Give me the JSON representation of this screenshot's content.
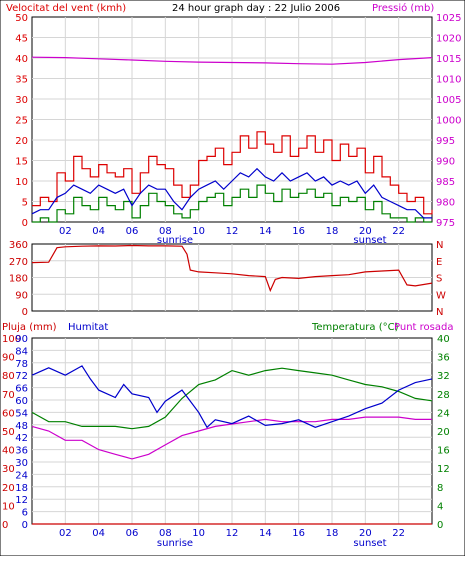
{
  "header": {
    "wind_title": "Velocitat del vent (kmh)",
    "center_title": "24 hour graph day : 22 Julio 2006",
    "pressure_title": "Pressió (mb)",
    "rain_title": "Pluja (mm)",
    "humidity_title": "Humitat",
    "temp_title": "Temperatura (°C)",
    "dew_title": "Punt rosada",
    "sunrise": "sunrise",
    "sunset": "sunset"
  },
  "colors": {
    "wind_gust": "#dd0000",
    "wind_avg": "#0000cc",
    "wind_low": "#008000",
    "pressure": "#cc00cc",
    "direction": "#cc0000",
    "humidity": "#0000cc",
    "temperature": "#008000",
    "dew": "#cc00cc",
    "rain": "#cc0000",
    "grid": "#d6d6d6",
    "frame": "#000000"
  },
  "chart_data": [
    {
      "type": "line",
      "name": "wind-pressure",
      "x_ticks": [
        "02",
        "04",
        "06",
        "08",
        "10",
        "12",
        "14",
        "16",
        "18",
        "20",
        "22"
      ],
      "y_left_ticks": [
        "0",
        "5",
        "10",
        "15",
        "20",
        "25",
        "30",
        "35",
        "40",
        "45",
        "50"
      ],
      "y_right_ticks": [
        "975",
        "980",
        "985",
        "990",
        "995",
        "1000",
        "1005",
        "1010",
        "1015",
        "1020",
        "1025"
      ],
      "ylim_left": [
        0,
        50
      ],
      "ylim_right": [
        975,
        1025
      ],
      "xlim": [
        0,
        24
      ],
      "series": [
        {
          "axis": "left",
          "color_key": "wind_gust",
          "x": [
            0,
            0.5,
            1,
            1.5,
            2,
            2.5,
            3,
            3.5,
            4,
            4.5,
            5,
            5.5,
            6,
            6.5,
            7,
            7.5,
            8,
            8.5,
            9,
            9.5,
            10,
            10.5,
            11,
            11.5,
            12,
            12.5,
            13,
            13.5,
            14,
            14.5,
            15,
            15.5,
            16,
            16.5,
            17,
            17.5,
            18,
            18.5,
            19,
            19.5,
            20,
            20.5,
            21,
            21.5,
            22,
            22.5,
            23,
            23.5,
            24
          ],
          "values": [
            4,
            6,
            5,
            12,
            10,
            16,
            13,
            11,
            14,
            12,
            11,
            13,
            7,
            12,
            16,
            14,
            13,
            9,
            6,
            9,
            15,
            16,
            18,
            14,
            17,
            21,
            18,
            22,
            19,
            17,
            21,
            16,
            18,
            21,
            17,
            20,
            15,
            19,
            16,
            18,
            12,
            16,
            11,
            9,
            7,
            5,
            6,
            2,
            3
          ]
        },
        {
          "axis": "left",
          "color_key": "wind_avg",
          "x": [
            0,
            0.5,
            1,
            1.5,
            2,
            2.5,
            3,
            3.5,
            4,
            4.5,
            5,
            5.5,
            6,
            6.5,
            7,
            7.5,
            8,
            8.5,
            9,
            9.5,
            10,
            10.5,
            11,
            11.5,
            12,
            12.5,
            13,
            13.5,
            14,
            14.5,
            15,
            15.5,
            16,
            16.5,
            17,
            17.5,
            18,
            18.5,
            19,
            19.5,
            20,
            20.5,
            21,
            21.5,
            22,
            22.5,
            23,
            23.5,
            24
          ],
          "values": [
            2,
            3,
            3,
            6,
            7,
            9,
            8,
            7,
            9,
            8,
            7,
            8,
            4,
            7,
            9,
            8,
            8,
            5,
            3,
            6,
            8,
            9,
            10,
            8,
            10,
            12,
            11,
            13,
            11,
            10,
            12,
            10,
            11,
            12,
            10,
            11,
            9,
            10,
            9,
            10,
            7,
            9,
            6,
            5,
            4,
            3,
            3,
            1,
            1
          ]
        },
        {
          "axis": "left",
          "color_key": "wind_low",
          "x": [
            0,
            0.5,
            1,
            1.5,
            2,
            2.5,
            3,
            3.5,
            4,
            4.5,
            5,
            5.5,
            6,
            6.5,
            7,
            7.5,
            8,
            8.5,
            9,
            9.5,
            10,
            10.5,
            11,
            11.5,
            12,
            12.5,
            13,
            13.5,
            14,
            14.5,
            15,
            15.5,
            16,
            16.5,
            17,
            17.5,
            18,
            18.5,
            19,
            19.5,
            20,
            20.5,
            21,
            21.5,
            22,
            22.5,
            23,
            23.5,
            24
          ],
          "values": [
            0,
            1,
            0,
            3,
            2,
            6,
            4,
            3,
            6,
            4,
            3,
            5,
            1,
            4,
            7,
            5,
            4,
            2,
            1,
            3,
            5,
            6,
            7,
            4,
            6,
            8,
            6,
            9,
            7,
            5,
            8,
            6,
            7,
            8,
            6,
            7,
            4,
            6,
            5,
            6,
            3,
            5,
            2,
            1,
            1,
            0,
            1,
            0,
            0
          ]
        },
        {
          "axis": "right",
          "color_key": "pressure",
          "x": [
            0,
            2,
            4,
            6,
            8,
            10,
            12,
            14,
            16,
            18,
            20,
            22,
            24
          ],
          "values": [
            1015.2,
            1015.1,
            1014.8,
            1014.5,
            1014.2,
            1014.0,
            1013.9,
            1013.8,
            1013.6,
            1013.5,
            1013.9,
            1014.6,
            1015.1
          ]
        }
      ]
    },
    {
      "type": "line",
      "name": "wind-direction",
      "y_left_ticks": [
        "0",
        "90",
        "180",
        "270",
        "360"
      ],
      "y_right_ticks": [
        "N",
        "W",
        "S",
        "E",
        "N"
      ],
      "ylim": [
        0,
        360
      ],
      "xlim": [
        0,
        24
      ],
      "series": [
        {
          "color_key": "direction",
          "x": [
            0,
            1,
            1.5,
            2,
            3,
            4,
            5,
            6,
            7,
            8,
            9,
            9.3,
            9.5,
            10,
            11,
            12,
            13,
            14,
            14.3,
            14.6,
            15,
            16,
            17,
            18,
            19,
            20,
            21,
            22,
            22.5,
            23,
            24
          ],
          "values": [
            260,
            262,
            340,
            345,
            348,
            350,
            349,
            352,
            350,
            350,
            348,
            305,
            220,
            210,
            205,
            200,
            190,
            185,
            110,
            170,
            180,
            175,
            185,
            190,
            195,
            210,
            215,
            220,
            140,
            135,
            150
          ]
        }
      ]
    },
    {
      "type": "line",
      "name": "humidity-temperature",
      "y_rain_ticks": [
        "0",
        "10",
        "20",
        "30",
        "40",
        "50",
        "60",
        "70",
        "80",
        "90",
        "100"
      ],
      "y_humidity_ticks": [
        "0",
        "6",
        "12",
        "18",
        "24",
        "30",
        "36",
        "42",
        "48",
        "54",
        "60",
        "66",
        "72",
        "78",
        "84",
        "90"
      ],
      "y_temp_ticks": [
        "0",
        "4",
        "8",
        "12",
        "16",
        "20",
        "24",
        "28",
        "32",
        "36",
        "40"
      ],
      "ylim_rain": [
        0,
        100
      ],
      "ylim_temp": [
        0,
        40
      ],
      "xlim": [
        0,
        24
      ],
      "series": [
        {
          "axis": "rain",
          "color_key": "humidity",
          "x": [
            0,
            1,
            2,
            3,
            3.5,
            4,
            5,
            5.5,
            6,
            7,
            7.5,
            8,
            9,
            10,
            10.5,
            11,
            12,
            13,
            14,
            15,
            16,
            17,
            18,
            19,
            20,
            21,
            22,
            23,
            24
          ],
          "values": [
            80,
            84,
            80,
            85,
            78,
            72,
            68,
            75,
            70,
            68,
            60,
            66,
            72,
            60,
            52,
            56,
            54,
            58,
            53,
            54,
            56,
            52,
            55,
            58,
            62,
            65,
            72,
            76,
            78
          ]
        },
        {
          "axis": "temp",
          "color_key": "temperature",
          "x": [
            0,
            1,
            2,
            3,
            4,
            5,
            6,
            7,
            8,
            9,
            10,
            11,
            12,
            13,
            14,
            15,
            16,
            17,
            18,
            19,
            20,
            21,
            22,
            23,
            24
          ],
          "values": [
            24,
            22,
            22,
            21,
            21,
            21,
            20.5,
            21,
            23,
            27,
            30,
            31,
            33,
            32,
            33,
            33.5,
            33,
            32.5,
            32,
            31,
            30,
            29.5,
            28.5,
            27,
            26.5
          ]
        },
        {
          "axis": "temp",
          "color_key": "dew",
          "x": [
            0,
            1,
            2,
            3,
            4,
            5,
            6,
            7,
            8,
            9,
            10,
            11,
            12,
            13,
            14,
            15,
            16,
            17,
            18,
            19,
            20,
            21,
            22,
            23,
            24
          ],
          "values": [
            21,
            20,
            18,
            18,
            16,
            15,
            14,
            15,
            17,
            19,
            20,
            21,
            21.5,
            22,
            22.5,
            22,
            22,
            22,
            22.5,
            22.5,
            23,
            23,
            23,
            22.5,
            22.5
          ]
        },
        {
          "axis": "rain",
          "color_key": "rain",
          "x": [
            0,
            24
          ],
          "values": [
            0,
            0
          ]
        }
      ]
    }
  ]
}
